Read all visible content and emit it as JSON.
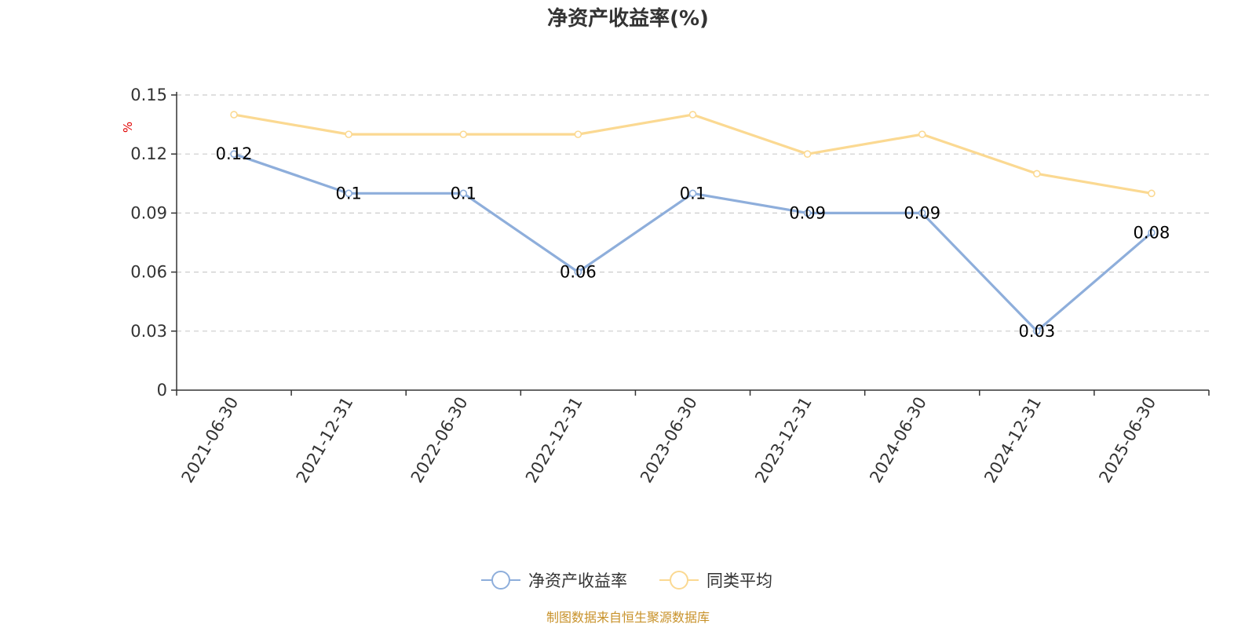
{
  "chart_data": {
    "type": "line",
    "title": "净资产收益率(%)",
    "ylabel": "%",
    "xlabel": "",
    "categories": [
      "2021-06-30",
      "2021-12-31",
      "2022-06-30",
      "2022-12-31",
      "2023-06-30",
      "2023-12-31",
      "2024-06-30",
      "2024-12-31",
      "2025-06-30"
    ],
    "ylim": [
      0,
      0.15
    ],
    "yticks": [
      "0",
      "0.03",
      "0.06",
      "0.09",
      "0.12",
      "0.15"
    ],
    "grid": true,
    "legend_position": "bottom-center",
    "series": [
      {
        "name": "净资产收益率",
        "values": [
          0.12,
          0.1,
          0.1,
          0.06,
          0.1,
          0.09,
          0.09,
          0.03,
          0.08
        ],
        "labels": [
          "0.12",
          "0.1",
          "0.1",
          "0.06",
          "0.1",
          "0.09",
          "0.09",
          "0.03",
          "0.08"
        ],
        "color": "#8eaedb",
        "show_labels": true
      },
      {
        "name": "同类平均",
        "values": [
          0.14,
          0.13,
          0.13,
          0.13,
          0.14,
          0.12,
          0.13,
          0.11,
          0.1
        ],
        "color": "#fbd992",
        "show_labels": false
      }
    ],
    "source_note": "制图数据来自恒生聚源数据库"
  }
}
